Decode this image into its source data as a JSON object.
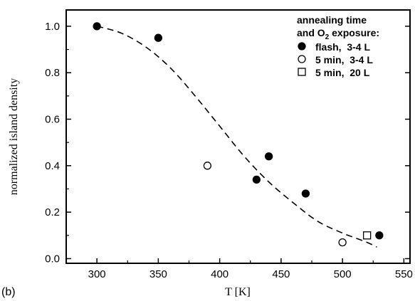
{
  "chart_data": {
    "type": "scatter",
    "panel_label": "(b)",
    "xlabel": "T [K]",
    "ylabel": "normalized island density",
    "xlim": [
      275,
      555
    ],
    "ylim": [
      -0.02,
      1.07
    ],
    "xticks": [
      300,
      350,
      400,
      450,
      500,
      550
    ],
    "yticks": [
      0.0,
      0.2,
      0.4,
      0.6,
      0.8,
      1.0
    ],
    "xtick_labels": [
      "300",
      "350",
      "400",
      "450",
      "500",
      "550"
    ],
    "ytick_labels": [
      "0.0",
      "0.2",
      "0.4",
      "0.6",
      "0.8",
      "1.0"
    ],
    "legend": {
      "title_line1": "annealing time",
      "title_line2_pre": "and O",
      "title_line2_sub": "2",
      "title_line2_post": " exposure:",
      "placement": "top-right"
    },
    "series": [
      {
        "name": "flash,  3-4 L",
        "marker": "filled-circle",
        "points": [
          {
            "x": 300,
            "y": 1.0
          },
          {
            "x": 350,
            "y": 0.95
          },
          {
            "x": 430,
            "y": 0.34
          },
          {
            "x": 440,
            "y": 0.44
          },
          {
            "x": 470,
            "y": 0.28
          },
          {
            "x": 530,
            "y": 0.1
          }
        ]
      },
      {
        "name": "5 min,  3-4 L",
        "marker": "open-circle",
        "points": [
          {
            "x": 390,
            "y": 0.4
          },
          {
            "x": 500,
            "y": 0.07
          }
        ]
      },
      {
        "name": "5 min,  20 L",
        "marker": "open-square",
        "points": [
          {
            "x": 520,
            "y": 0.1
          }
        ]
      }
    ],
    "fit_curve": {
      "style": "dashed",
      "points": [
        [
          300,
          1.0
        ],
        [
          320,
          0.97
        ],
        [
          340,
          0.91
        ],
        [
          360,
          0.82
        ],
        [
          380,
          0.7
        ],
        [
          400,
          0.57
        ],
        [
          420,
          0.44
        ],
        [
          440,
          0.33
        ],
        [
          460,
          0.24
        ],
        [
          480,
          0.16
        ],
        [
          500,
          0.11
        ],
        [
          510,
          0.09
        ],
        [
          520,
          0.07
        ],
        [
          528,
          0.05
        ]
      ]
    }
  }
}
